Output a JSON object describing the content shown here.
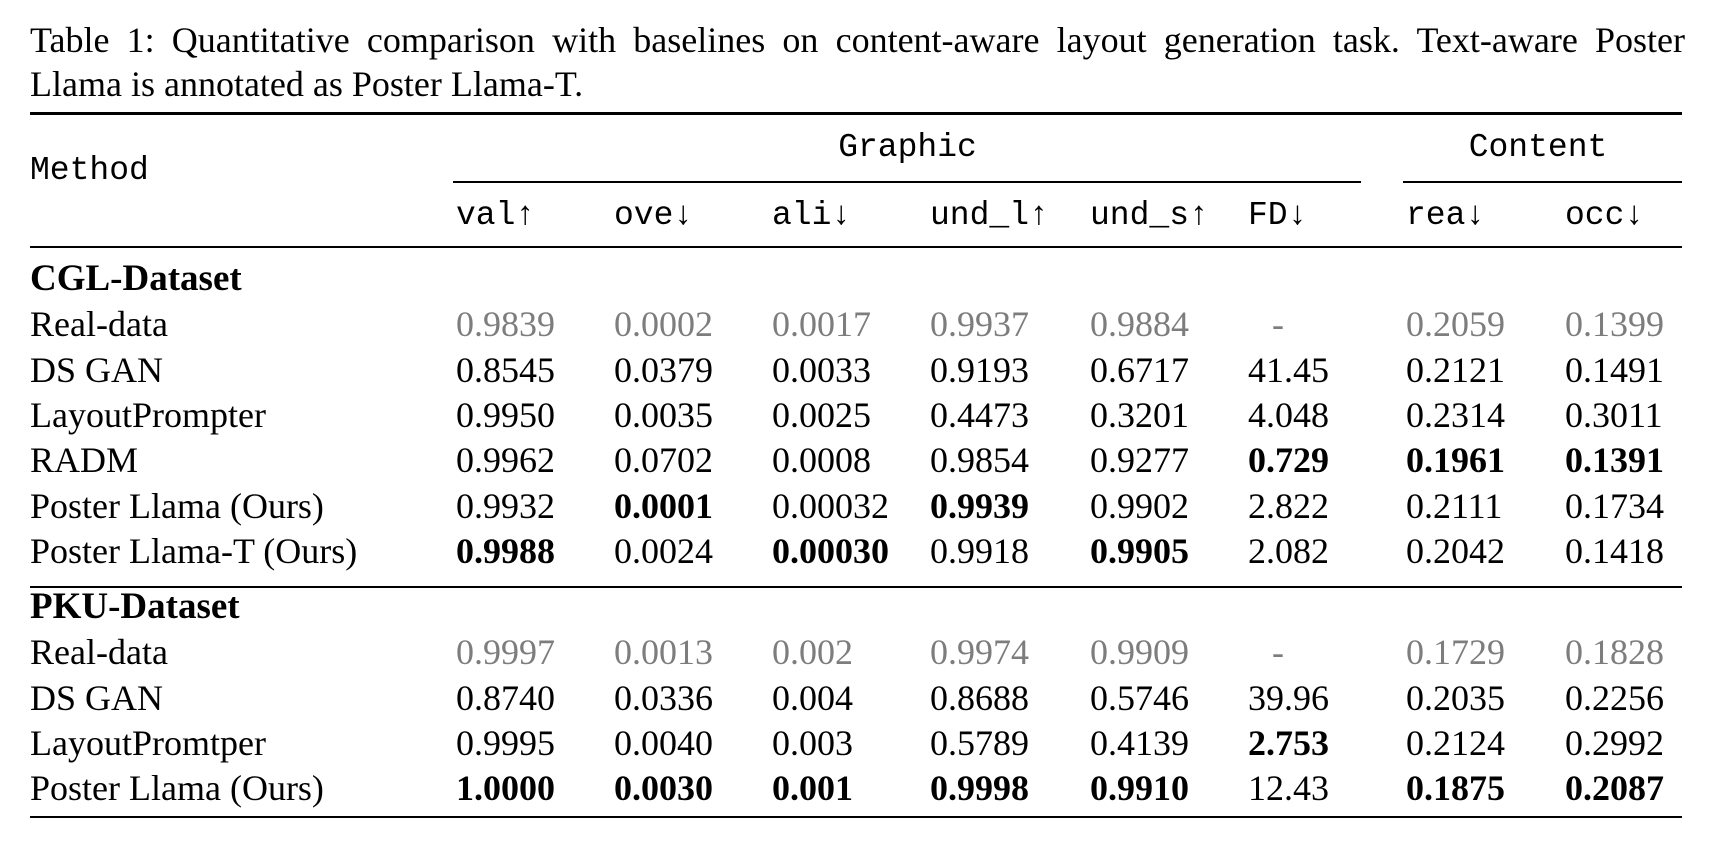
{
  "caption": "Table 1: Quantitative comparison with baselines on content-aware layout generation task. Text-aware Poster Llama is annotated as Poster Llama-T.",
  "header": {
    "method_label": "Method",
    "group_graphic": "Graphic",
    "group_content": "Content",
    "columns": [
      "val↑",
      "ove↓",
      "ali↓",
      "und_l↑",
      "und_s↑",
      "FD↓",
      "rea↓",
      "occ↓"
    ]
  },
  "sections": [
    {
      "name": "CGL-Dataset",
      "rows": [
        {
          "method": "Real-data",
          "style": "gray",
          "values": [
            "0.9839",
            "0.0002",
            "0.0017",
            "0.9937",
            "0.9884",
            "-",
            "0.2059",
            "0.1399"
          ],
          "bold": []
        },
        {
          "method": "DS GAN",
          "style": "normal",
          "values": [
            "0.8545",
            "0.0379",
            "0.0033",
            "0.9193",
            "0.6717",
            "41.45",
            "0.2121",
            "0.1491"
          ],
          "bold": []
        },
        {
          "method": "LayoutPrompter",
          "style": "normal",
          "values": [
            "0.9950",
            "0.0035",
            "0.0025",
            "0.4473",
            "0.3201",
            "4.048",
            "0.2314",
            "0.3011"
          ],
          "bold": []
        },
        {
          "method": "RADM",
          "style": "normal",
          "values": [
            "0.9962",
            "0.0702",
            "0.0008",
            "0.9854",
            "0.9277",
            "0.729",
            "0.1961",
            "0.1391"
          ],
          "bold": [
            5,
            6,
            7
          ]
        },
        {
          "method": "Poster Llama (Ours)",
          "style": "normal",
          "values": [
            "0.9932",
            "0.0001",
            "0.00032",
            "0.9939",
            "0.9902",
            "2.822",
            "0.2111",
            "0.1734"
          ],
          "bold": [
            1,
            3
          ]
        },
        {
          "method": "Poster Llama-T (Ours)",
          "style": "normal",
          "values": [
            "0.9988",
            "0.0024",
            "0.00030",
            "0.9918",
            "0.9905",
            "2.082",
            "0.2042",
            "0.1418"
          ],
          "bold": [
            0,
            2,
            4
          ]
        }
      ]
    },
    {
      "name": "PKU-Dataset",
      "rows": [
        {
          "method": "Real-data",
          "style": "gray",
          "values": [
            "0.9997",
            "0.0013",
            "0.002",
            "0.9974",
            "0.9909",
            "-",
            "0.1729",
            "0.1828"
          ],
          "bold": []
        },
        {
          "method": "DS GAN",
          "style": "normal",
          "values": [
            "0.8740",
            "0.0336",
            "0.004",
            "0.8688",
            "0.5746",
            "39.96",
            "0.2035",
            "0.2256"
          ],
          "bold": []
        },
        {
          "method": "LayoutPromtper",
          "style": "normal",
          "values": [
            "0.9995",
            "0.0040",
            "0.003",
            "0.5789",
            "0.4139",
            "2.753",
            "0.2124",
            "0.2992"
          ],
          "bold": [
            5
          ]
        },
        {
          "method": "Poster Llama (Ours)",
          "style": "normal",
          "values": [
            "1.0000",
            "0.0030",
            "0.001",
            "0.9998",
            "0.9910",
            "12.43",
            "0.1875",
            "0.2087"
          ],
          "bold": [
            0,
            1,
            2,
            3,
            4,
            6,
            7
          ]
        }
      ]
    }
  ]
}
